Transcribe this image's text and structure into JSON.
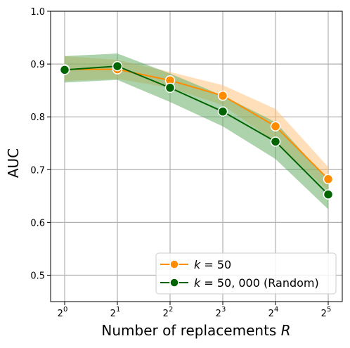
{
  "chart_data": {
    "type": "line",
    "title": "",
    "xlabel": "Number of replacements",
    "xlabel_var": "R",
    "ylabel": "AUC",
    "x_base": "2",
    "x_exponents": [
      "0",
      "1",
      "2",
      "3",
      "4",
      "5"
    ],
    "x": [
      1,
      2,
      4,
      8,
      16,
      32
    ],
    "x_scale": "log2",
    "ylim": [
      0.45,
      1.0
    ],
    "yticks": [
      "0.5",
      "0.6",
      "0.7",
      "0.8",
      "0.9",
      "1.0"
    ],
    "grid": true,
    "legend_position": "lower-right",
    "series": [
      {
        "name_prefix": "k",
        "name_suffix": " = 50",
        "color": "#ff8c00",
        "band_color": "#ffbf73",
        "values": [
          0.89,
          0.89,
          0.869,
          0.84,
          0.782,
          0.682
        ],
        "lower": [
          0.868,
          0.872,
          0.855,
          0.822,
          0.752,
          0.66
        ],
        "upper": [
          0.915,
          0.908,
          0.885,
          0.86,
          0.815,
          0.705
        ]
      },
      {
        "name_prefix": "k",
        "name_suffix": " = 50, 000 (Random)",
        "color": "#006400",
        "band_color": "#5aa85a",
        "values": [
          0.889,
          0.896,
          0.855,
          0.81,
          0.753,
          0.653
        ],
        "lower": [
          0.865,
          0.87,
          0.828,
          0.782,
          0.72,
          0.625
        ],
        "upper": [
          0.915,
          0.92,
          0.882,
          0.84,
          0.79,
          0.68
        ]
      }
    ]
  }
}
